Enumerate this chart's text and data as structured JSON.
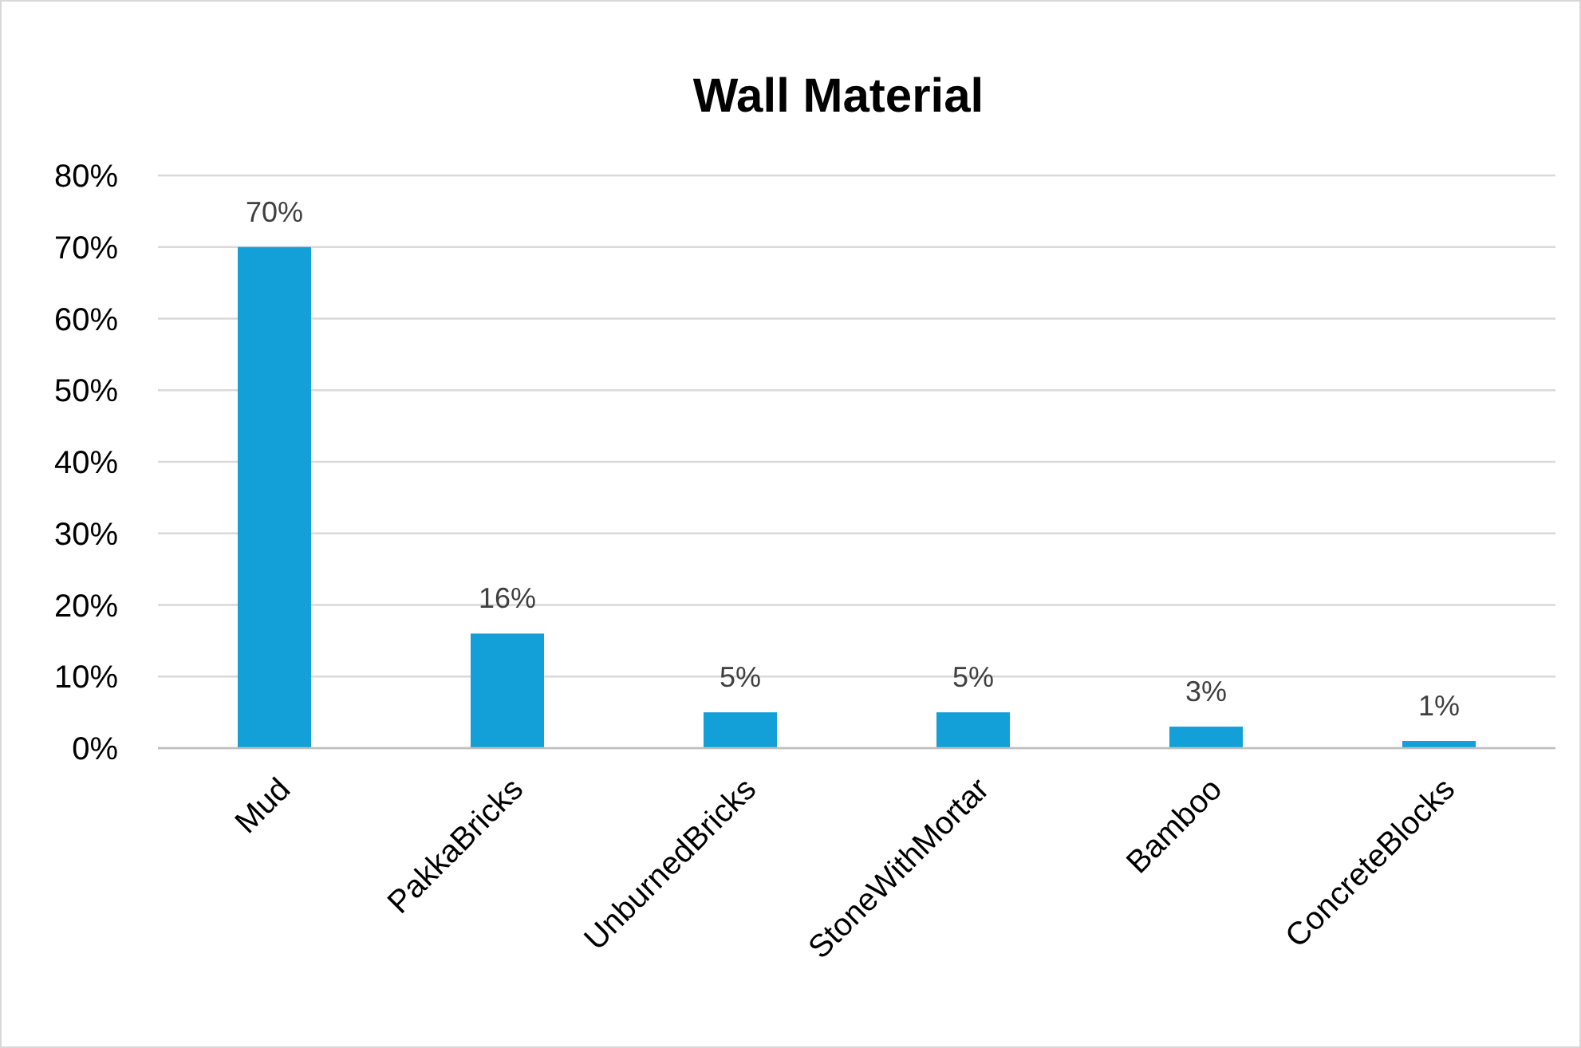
{
  "chart_data": {
    "type": "bar",
    "title": "Wall Material",
    "categories": [
      "Mud",
      "PakkaBricks",
      "UnburnedBricks",
      "StoneWithMortar",
      "Bamboo",
      "ConcreteBlocks"
    ],
    "values": [
      70,
      16,
      5,
      5,
      3,
      1
    ],
    "value_labels": [
      "70%",
      "16%",
      "5%",
      "5%",
      "3%",
      "1%"
    ],
    "color": "#139fd8",
    "ylim": [
      0,
      80
    ],
    "yticks": [
      {
        "value": 0,
        "label": "0%"
      },
      {
        "value": 10,
        "label": "10%"
      },
      {
        "value": 20,
        "label": "20%"
      },
      {
        "value": 30,
        "label": "30%"
      },
      {
        "value": 40,
        "label": "40%"
      },
      {
        "value": 50,
        "label": "50%"
      },
      {
        "value": 60,
        "label": "60%"
      },
      {
        "value": 70,
        "label": "70%"
      },
      {
        "value": 80,
        "label": "80%"
      }
    ],
    "grid": "y"
  }
}
